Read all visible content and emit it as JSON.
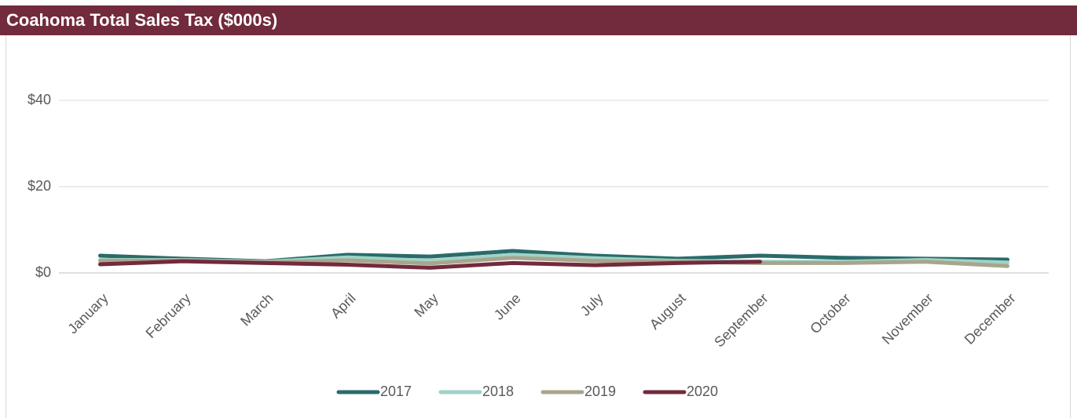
{
  "chart_data": {
    "type": "line",
    "title": "Coahoma Total Sales Tax ($000s)",
    "categories": [
      "January",
      "February",
      "March",
      "April",
      "May",
      "June",
      "July",
      "August",
      "September",
      "October",
      "November",
      "December"
    ],
    "series": [
      {
        "name": "2017",
        "color": "#2a6b6a",
        "values": [
          4.0,
          3.3,
          2.7,
          4.2,
          3.8,
          5.1,
          4.0,
          3.3,
          4.0,
          3.5,
          3.3,
          3.1
        ]
      },
      {
        "name": "2018",
        "color": "#9fd3c7",
        "values": [
          3.0,
          3.0,
          2.6,
          3.6,
          2.8,
          4.2,
          3.4,
          2.8,
          2.6,
          2.6,
          3.0,
          2.4
        ]
      },
      {
        "name": "2019",
        "color": "#a8a58c",
        "values": [
          2.8,
          2.9,
          2.5,
          2.9,
          2.2,
          3.5,
          2.8,
          2.6,
          2.3,
          2.3,
          2.6,
          1.6
        ]
      },
      {
        "name": "2020",
        "color": "#722a3d",
        "values": [
          2.0,
          2.7,
          2.3,
          1.9,
          1.2,
          2.3,
          1.8,
          2.3,
          2.6,
          null,
          null,
          null
        ]
      }
    ],
    "ylim": [
      0,
      50
    ],
    "yticks": [
      {
        "value": 0,
        "label": "$0"
      },
      {
        "value": 20,
        "label": "$20"
      },
      {
        "value": 40,
        "label": "$40"
      }
    ],
    "grid": true,
    "legend": "bottom"
  }
}
